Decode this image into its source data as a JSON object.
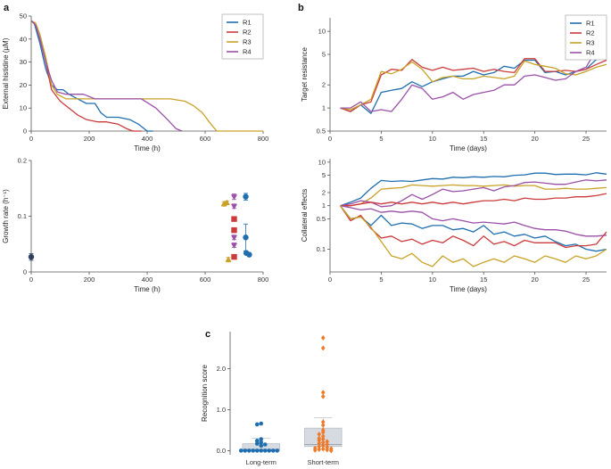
{
  "colors": {
    "R1": "#1f6fb0",
    "R2": "#cc3b3b",
    "R3": "#c9a227",
    "R4": "#9b50a8",
    "orange": "#f07a2a",
    "dark": "#2f3f5c",
    "box": "#d6dbe2"
  },
  "panel_labels": {
    "a": "a",
    "b": "b",
    "c": "c"
  },
  "chart_data": [
    {
      "id": "a_top",
      "type": "line",
      "xlabel": "Time (h)",
      "ylabel": "External histidine (µM)",
      "xlim": [
        0,
        800
      ],
      "ylim": [
        0,
        50
      ],
      "xticks": [
        0,
        200,
        400,
        600,
        800
      ],
      "yticks": [
        0,
        10,
        20,
        30,
        40,
        50
      ],
      "legend": [
        "R1",
        "R2",
        "R3",
        "R4"
      ],
      "series": [
        {
          "name": "R1",
          "points": [
            [
              0,
              48
            ],
            [
              10,
              47
            ],
            [
              30,
              38
            ],
            [
              50,
              27
            ],
            [
              70,
              20
            ],
            [
              90,
              18
            ],
            [
              110,
              18
            ],
            [
              130,
              16
            ],
            [
              160,
              14
            ],
            [
              190,
              12
            ],
            [
              220,
              12
            ],
            [
              240,
              8
            ],
            [
              260,
              6
            ],
            [
              300,
              6
            ],
            [
              340,
              5
            ],
            [
              370,
              3
            ],
            [
              400,
              0
            ],
            [
              420,
              0
            ]
          ]
        },
        {
          "name": "R2",
          "points": [
            [
              0,
              48
            ],
            [
              15,
              46
            ],
            [
              30,
              40
            ],
            [
              50,
              30
            ],
            [
              70,
              18
            ],
            [
              100,
              13
            ],
            [
              130,
              10
            ],
            [
              160,
              7
            ],
            [
              190,
              5
            ],
            [
              230,
              4
            ],
            [
              260,
              4
            ],
            [
              300,
              3
            ],
            [
              330,
              1
            ],
            [
              350,
              0
            ],
            [
              380,
              0
            ]
          ]
        },
        {
          "name": "R3",
          "points": [
            [
              0,
              48
            ],
            [
              15,
              47
            ],
            [
              30,
              42
            ],
            [
              50,
              32
            ],
            [
              70,
              20
            ],
            [
              90,
              16
            ],
            [
              120,
              14
            ],
            [
              200,
              14
            ],
            [
              300,
              14
            ],
            [
              400,
              14
            ],
            [
              480,
              14
            ],
            [
              530,
              13
            ],
            [
              560,
              11
            ],
            [
              590,
              8
            ],
            [
              620,
              3
            ],
            [
              640,
              0
            ],
            [
              800,
              0
            ]
          ]
        },
        {
          "name": "R4",
          "points": [
            [
              0,
              48
            ],
            [
              15,
              46
            ],
            [
              30,
              40
            ],
            [
              50,
              30
            ],
            [
              70,
              22
            ],
            [
              90,
              17
            ],
            [
              120,
              16
            ],
            [
              180,
              16
            ],
            [
              220,
              14
            ],
            [
              300,
              14
            ],
            [
              380,
              14
            ],
            [
              430,
              10
            ],
            [
              470,
              5
            ],
            [
              500,
              1
            ],
            [
              520,
              0
            ]
          ]
        }
      ]
    },
    {
      "id": "a_bottom",
      "type": "scatter",
      "xlabel": "Time (h)",
      "ylabel": "Growth rate (h⁻¹)",
      "xlim": [
        0,
        800
      ],
      "ylim": [
        0,
        0.2
      ],
      "xticks": [
        0,
        200,
        400,
        600,
        800
      ],
      "yticks": [
        0,
        0.1,
        0.2
      ],
      "points": [
        {
          "x": 0,
          "y": 0.027,
          "err": 0.006,
          "color": "dark",
          "shape": "circle"
        },
        {
          "x": 665,
          "y": 0.122,
          "err": 0.004,
          "color": "R3",
          "shape": "triangle-up"
        },
        {
          "x": 675,
          "y": 0.124,
          "err": 0.003,
          "color": "R3",
          "shape": "triangle-up"
        },
        {
          "x": 680,
          "y": 0.022,
          "err": 0.004,
          "color": "R3",
          "shape": "triangle-up"
        },
        {
          "x": 700,
          "y": 0.135,
          "err": 0.005,
          "color": "R4",
          "shape": "triangle-down"
        },
        {
          "x": 700,
          "y": 0.118,
          "err": 0.004,
          "color": "R4",
          "shape": "triangle-down"
        },
        {
          "x": 700,
          "y": 0.062,
          "err": 0.004,
          "color": "R4",
          "shape": "triangle-down"
        },
        {
          "x": 700,
          "y": 0.048,
          "err": 0.004,
          "color": "R4",
          "shape": "triangle-down"
        },
        {
          "x": 700,
          "y": 0.095,
          "err": 0.004,
          "color": "R2",
          "shape": "square"
        },
        {
          "x": 700,
          "y": 0.075,
          "err": 0.004,
          "color": "R2",
          "shape": "square"
        },
        {
          "x": 700,
          "y": 0.027,
          "err": 0.003,
          "color": "R2",
          "shape": "square"
        },
        {
          "x": 740,
          "y": 0.135,
          "err": 0.006,
          "color": "R1",
          "shape": "circle"
        },
        {
          "x": 740,
          "y": 0.062,
          "err": 0.024,
          "color": "R1",
          "shape": "circle"
        },
        {
          "x": 742,
          "y": 0.034,
          "err": 0.003,
          "color": "R1",
          "shape": "circle"
        },
        {
          "x": 752,
          "y": 0.031,
          "err": 0.003,
          "color": "R1",
          "shape": "circle"
        }
      ]
    },
    {
      "id": "b_top",
      "type": "line",
      "yscale": "log",
      "xlabel": "Time (days)",
      "ylabel": "Target resistance",
      "xlim": [
        0,
        27
      ],
      "ylim": [
        0.5,
        15
      ],
      "xticks": [
        0,
        5,
        10,
        15,
        20,
        25
      ],
      "yticks": [
        0.5,
        1,
        2,
        5,
        10
      ],
      "ytick_labels": [
        "0.5",
        "1",
        "2",
        "5",
        "10"
      ],
      "legend": [
        "R1",
        "R2",
        "R3",
        "R4"
      ],
      "series": [
        {
          "name": "R1",
          "y": [
            1,
            0.9,
            1.1,
            0.85,
            1.6,
            1.7,
            1.8,
            2.2,
            1.9,
            2.2,
            2.4,
            2.6,
            2.6,
            3,
            2.7,
            2.9,
            3.5,
            3.3,
            4.2,
            4.2,
            2.9,
            3,
            2.7,
            3,
            3.2,
            4.3,
            4.6
          ]
        },
        {
          "name": "R2",
          "y": [
            1,
            0.9,
            1.1,
            1.2,
            2.7,
            3.2,
            3.1,
            4.3,
            3.4,
            3.1,
            3.4,
            3.1,
            3.2,
            3.3,
            3,
            3.2,
            3,
            2.9,
            4.4,
            4.4,
            3,
            3,
            3.1,
            3,
            3.2,
            3.7,
            4.2
          ]
        },
        {
          "name": "R3",
          "y": [
            1,
            0.95,
            1.1,
            1.3,
            3,
            2.8,
            3.2,
            4,
            3.2,
            2.2,
            2.5,
            2.6,
            2.4,
            2.4,
            2.6,
            2.5,
            2.4,
            2.6,
            4.1,
            3.7,
            3.5,
            3.3,
            2.8,
            2.7,
            3,
            3.4,
            3.7
          ]
        },
        {
          "name": "R4",
          "y": [
            1,
            1,
            1.2,
            0.9,
            0.95,
            0.9,
            1.3,
            2,
            1.8,
            1.3,
            1.4,
            1.6,
            1.3,
            1.5,
            1.6,
            1.7,
            2,
            2,
            2.6,
            2.7,
            2.5,
            2.3,
            2.4,
            3,
            3.4,
            5.7,
            5.7
          ]
        }
      ]
    },
    {
      "id": "b_bottom",
      "type": "line",
      "yscale": "log",
      "xlabel": "Time (days)",
      "ylabel": "Collateral effects",
      "xlim": [
        0,
        27
      ],
      "ylim": [
        0.03,
        12
      ],
      "xticks": [
        0,
        5,
        10,
        15,
        20,
        25
      ],
      "yticks": [
        0.1,
        0.5,
        1,
        2,
        5,
        10
      ],
      "ytick_labels": [
        "0.1",
        "0.5",
        "1",
        "2",
        "5",
        "10"
      ],
      "series": [
        {
          "name": "R1",
          "y": [
            1,
            1.2,
            1.5,
            2.5,
            3.8,
            3.6,
            3.7,
            3.6,
            3.9,
            4.2,
            4.1,
            4.5,
            4.4,
            4.6,
            4.5,
            4.7,
            4.6,
            5,
            5.1,
            5.6,
            5.6,
            5.2,
            5.3,
            5.3,
            5.1,
            5.7,
            5.3
          ]
        },
        {
          "name": "R3",
          "y": [
            1,
            1,
            1.1,
            1.5,
            2.4,
            2.5,
            2.6,
            3,
            2.9,
            2.8,
            2.9,
            3,
            2.9,
            2.9,
            2.8,
            2.9,
            3,
            2.8,
            2.9,
            2.9,
            2.4,
            2.4,
            2.5,
            2.4,
            2.4,
            2.5,
            2.6
          ]
        },
        {
          "name": "R4",
          "y": [
            1,
            1.1,
            1.3,
            1.2,
            0.95,
            1,
            1.3,
            1.8,
            1.4,
            1.8,
            2.4,
            2.1,
            2.2,
            2.4,
            2.6,
            2.2,
            2.7,
            2.9,
            3.4,
            3.5,
            3.3,
            3.1,
            3.1,
            3.5,
            3.9,
            3.7,
            3.9
          ]
        },
        {
          "name": "R2",
          "y": [
            1,
            1,
            1.1,
            1.2,
            1.1,
            1.2,
            1.1,
            1.2,
            1.1,
            1.2,
            1.1,
            1.2,
            1.1,
            1.2,
            1.3,
            1.3,
            1.4,
            1.3,
            1.5,
            1.4,
            1.4,
            1.5,
            1.5,
            1.6,
            1.6,
            1.7,
            1.9
          ]
        },
        {
          "name": "R4",
          "y": [
            1,
            0.9,
            0.8,
            0.85,
            0.7,
            0.75,
            0.7,
            0.75,
            0.7,
            0.5,
            0.45,
            0.5,
            0.45,
            0.4,
            0.42,
            0.4,
            0.38,
            0.42,
            0.35,
            0.3,
            0.28,
            0.28,
            0.26,
            0.22,
            0.2,
            0.2,
            0.21
          ]
        },
        {
          "name": "R1",
          "y": [
            1,
            0.5,
            0.55,
            0.35,
            0.6,
            0.35,
            0.4,
            0.38,
            0.3,
            0.35,
            0.35,
            0.28,
            0.3,
            0.25,
            0.35,
            0.22,
            0.25,
            0.2,
            0.22,
            0.18,
            0.2,
            0.15,
            0.12,
            0.13,
            0.1,
            0.09,
            0.1
          ]
        },
        {
          "name": "R2",
          "y": [
            1,
            0.45,
            0.6,
            0.3,
            0.18,
            0.2,
            0.15,
            0.17,
            0.13,
            0.16,
            0.14,
            0.2,
            0.16,
            0.12,
            0.2,
            0.13,
            0.15,
            0.12,
            0.16,
            0.14,
            0.14,
            0.14,
            0.11,
            0.12,
            0.12,
            0.13,
            0.25
          ]
        },
        {
          "name": "R3",
          "y": [
            1,
            0.5,
            0.55,
            0.32,
            0.15,
            0.07,
            0.06,
            0.08,
            0.05,
            0.04,
            0.07,
            0.05,
            0.06,
            0.04,
            0.05,
            0.06,
            0.05,
            0.07,
            0.06,
            0.05,
            0.07,
            0.06,
            0.05,
            0.07,
            0.06,
            0.07,
            0.1
          ]
        }
      ]
    },
    {
      "id": "c",
      "type": "box",
      "ylabel": "Recognition score",
      "ylim": [
        -0.1,
        2.9
      ],
      "yticks": [
        0,
        1.0,
        2.0
      ],
      "ytick_labels": [
        "0.0",
        "1.0",
        "2.0"
      ],
      "categories": [
        "Long-term",
        "Short-term"
      ],
      "boxes": [
        {
          "category": "Long-term",
          "q1": 0,
          "median": 0.03,
          "q3": 0.17,
          "whisker_high": 0.3,
          "color": "R1",
          "shape": "circle",
          "points": [
            0.66,
            0.64,
            0.28,
            0.24,
            0.2,
            0.17,
            0.15,
            0.12,
            0,
            0,
            0,
            0,
            0,
            0,
            0,
            0,
            0,
            0
          ]
        },
        {
          "category": "Short-term",
          "q1": 0.1,
          "median": 0.15,
          "q3": 0.55,
          "whisker_high": 0.8,
          "color": "orange",
          "shape": "diamond",
          "points": [
            2.75,
            2.5,
            1.42,
            1.32,
            0.7,
            0.62,
            0.5,
            0.45,
            0.4,
            0.35,
            0.3,
            0.28,
            0.25,
            0.22,
            0.2,
            0.18,
            0.15,
            0.12,
            0.1,
            0.08,
            0.06,
            0.05,
            0.04,
            0.03,
            0.02,
            0.01,
            0
          ]
        }
      ]
    }
  ]
}
